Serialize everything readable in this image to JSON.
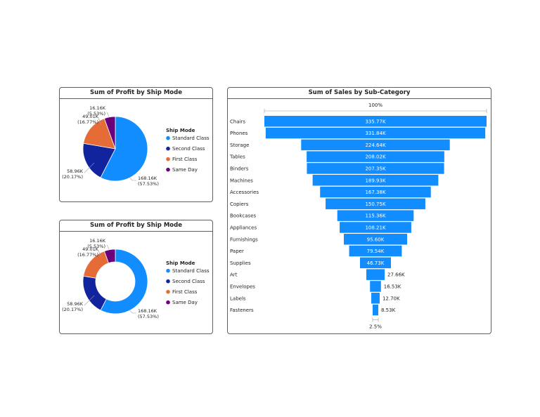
{
  "colors": {
    "standard": "#118DFF",
    "second": "#12239E",
    "first": "#E66C37",
    "sameday": "#6B007B",
    "funnel": "#118DFF",
    "text": "#252423",
    "leader": "#9a9a9a"
  },
  "pie_card": {
    "title": "Sum of Profit by Ship Mode"
  },
  "donut_card": {
    "title": "Sum of Profit by Ship Mode"
  },
  "funnel_card": {
    "title": "Sum of Sales by Sub-Category",
    "top_pct": "100%",
    "bottom_pct": "2.5%"
  },
  "chart_data": [
    {
      "type": "pie",
      "title": "Sum of Profit by Ship Mode",
      "legend_title": "Ship Mode",
      "legend_position": "right",
      "slices": [
        {
          "name": "Standard Class",
          "value": 168.16,
          "value_label": "168.16K",
          "percent_label": "(57.53%)",
          "color": "#118DFF"
        },
        {
          "name": "Second Class",
          "value": 58.96,
          "value_label": "58.96K",
          "percent_label": "(20.17%)",
          "color": "#12239E"
        },
        {
          "name": "First Class",
          "value": 49.01,
          "value_label": "49.01K",
          "percent_label": "(16.77%)",
          "color": "#E66C37"
        },
        {
          "name": "Same Day",
          "value": 16.16,
          "value_label": "16.16K",
          "percent_label": "(5.53%)",
          "color": "#6B007B"
        }
      ]
    },
    {
      "type": "pie",
      "variant": "donut",
      "title": "Sum of Profit by Ship Mode",
      "legend_title": "Ship Mode",
      "legend_position": "right",
      "slices": [
        {
          "name": "Standard Class",
          "value": 168.16,
          "value_label": "168.16K",
          "percent_label": "(57.53%)",
          "color": "#118DFF"
        },
        {
          "name": "Second Class",
          "value": 58.96,
          "value_label": "58.96K",
          "percent_label": "(20.17%)",
          "color": "#12239E"
        },
        {
          "name": "First Class",
          "value": 49.01,
          "value_label": "49.01K",
          "percent_label": "(16.77%)",
          "color": "#E66C37"
        },
        {
          "name": "Same Day",
          "value": 16.16,
          "value_label": "16.16K",
          "percent_label": "(5.53%)",
          "color": "#6B007B"
        }
      ]
    },
    {
      "type": "bar",
      "variant": "funnel",
      "title": "Sum of Sales by Sub-Category",
      "top_percent_label": "100%",
      "bottom_percent_label": "2.5%",
      "categories": [
        "Chairs",
        "Phones",
        "Storage",
        "Tables",
        "Binders",
        "Machines",
        "Accessories",
        "Copiers",
        "Bookcases",
        "Appliances",
        "Furnishings",
        "Paper",
        "Supplies",
        "Art",
        "Envelopes",
        "Labels",
        "Fasteners"
      ],
      "values": [
        335.77,
        331.84,
        224.64,
        208.02,
        207.35,
        189.93,
        167.38,
        150.75,
        115.36,
        108.21,
        95.6,
        79.54,
        46.73,
        27.66,
        16.53,
        12.7,
        8.53
      ],
      "value_labels": [
        "335.77K",
        "331.84K",
        "224.64K",
        "208.02K",
        "207.35K",
        "189.93K",
        "167.38K",
        "150.75K",
        "115.36K",
        "108.21K",
        "95.60K",
        "79.54K",
        "46.73K",
        "27.66K",
        "16.53K",
        "12.70K",
        "8.53K"
      ]
    }
  ]
}
